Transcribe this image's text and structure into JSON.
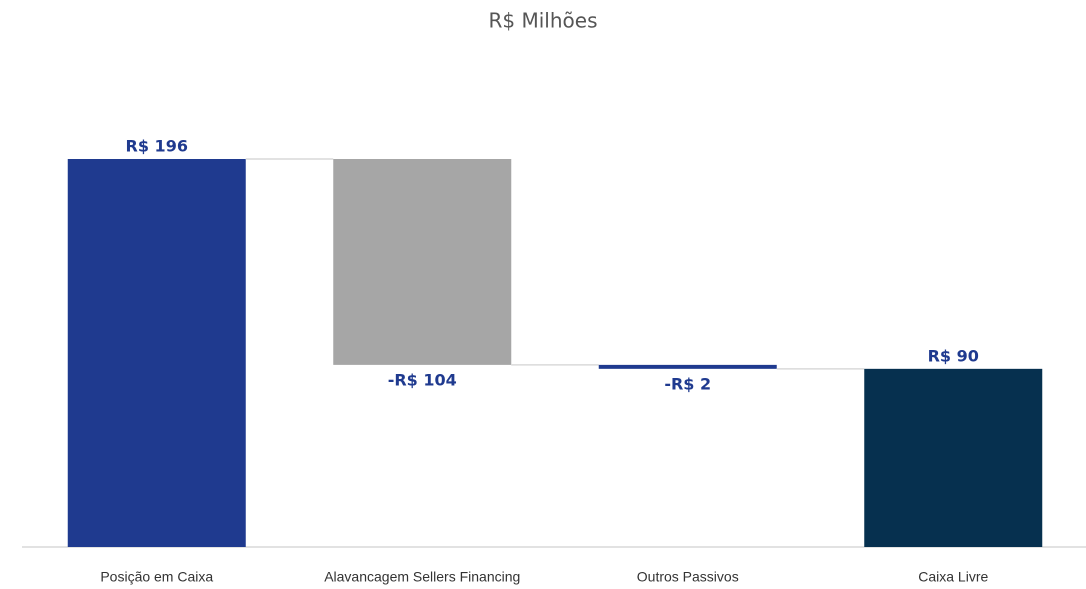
{
  "chart_data": {
    "type": "waterfall",
    "title": "R$ Milhões",
    "categories": [
      "Posição em Caixa",
      "Alavancagem Sellers Financing",
      "Outros Passivos",
      "Caixa Livre"
    ],
    "values": [
      196,
      -104,
      -2,
      90
    ],
    "value_labels": [
      "R$ 196",
      "-R$ 104",
      "-R$ 2",
      "R$ 90"
    ],
    "colors": [
      "#1f3a8f",
      "#a6a6a6",
      "#1f3a8f",
      "#06304f"
    ]
  }
}
